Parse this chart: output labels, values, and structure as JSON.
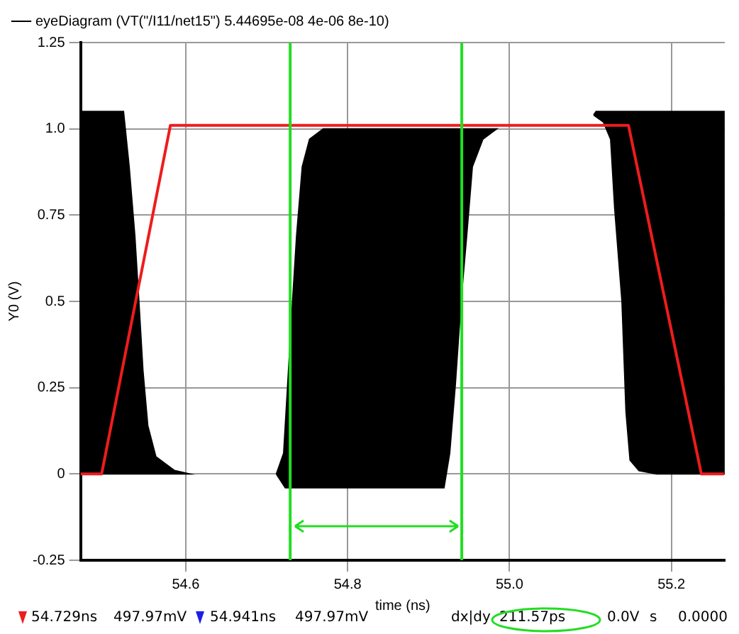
{
  "chart_data": {
    "type": "area",
    "xlabel": "time (ns)",
    "ylabel": "Y0 (V)",
    "xlim": [
      54.47,
      55.266
    ],
    "ylim": [
      -0.25,
      1.25
    ],
    "xticks": [
      54.6,
      54.8,
      {
        "value": 55,
        "label": "55.0"
      },
      55.2
    ],
    "yticks": [
      -0.25,
      0,
      0.25,
      0.5,
      0.75,
      {
        "value": 1,
        "label": "1.0"
      },
      1.25
    ],
    "grid": true,
    "legend": "top left",
    "series": [
      {
        "name": "eyeDiagram (VT(\"/I11/net15\") 5.44695e-08 4e-06 8e-10)",
        "color": "#000000",
        "type": "area",
        "x": [
          54.47,
          54.523,
          54.53,
          54.537,
          54.542,
          54.547,
          54.553,
          54.563,
          54.586,
          54.604,
          54.47,
          null,
          54.712,
          54.723,
          54.919,
          54.926,
          54.933,
          54.94,
          54.947,
          54.954,
          54.967,
          54.984,
          54.77,
          54.753,
          54.744,
          54.737,
          54.732,
          54.726,
          54.721,
          null,
          55.104,
          55.107,
          55.265,
          55.265,
          55.182,
          55.16,
          55.149,
          55.144,
          55.139,
          55.13,
          55.125,
          55.116
        ],
        "values": [
          1.05,
          1.05,
          0.89,
          0.69,
          0.5,
          0.3,
          0.14,
          0.05,
          0.01,
          0,
          0,
          null,
          0,
          -0.04,
          -0.04,
          0.06,
          0.26,
          0.5,
          0.69,
          0.89,
          0.97,
          1.0,
          1.0,
          0.97,
          0.89,
          0.69,
          0.5,
          0.26,
          0.06,
          null,
          1.04,
          1.05,
          1.05,
          0,
          0,
          0.01,
          0.04,
          0.18,
          0.5,
          0.77,
          0.97,
          1.02
        ]
      },
      {
        "color": "#ee1c1c",
        "type": "line",
        "x": [
          54.47,
          54.496,
          54.581,
          55.147,
          55.237,
          55.265
        ],
        "values": [
          0,
          0,
          1.01,
          1.01,
          0,
          0
        ]
      }
    ],
    "ref_lines": [
      {
        "axis": "x",
        "value": 54.729,
        "color": "#22dd22"
      },
      {
        "axis": "x",
        "value": 54.941,
        "color": "#22dd22"
      }
    ],
    "annotations": [
      "54.729ns",
      "497.97mV",
      "54.941ns",
      "497.97mV",
      "dx|dy",
      "211.57ps",
      "0.0V",
      "s",
      "0.0000"
    ]
  }
}
